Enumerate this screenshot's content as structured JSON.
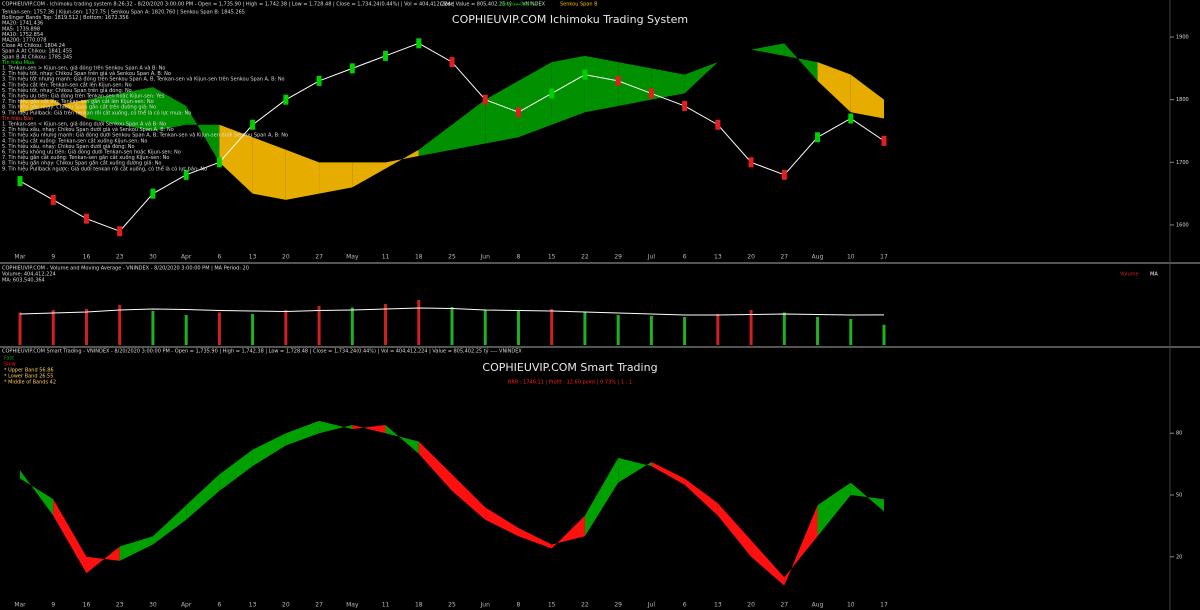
{
  "chart_data": [
    {
      "type": "ichimoku",
      "title": "COPHIEUVIP.COM Ichimoku Trading System",
      "header": "COPHIEUVIP.COM - Ichimoku trading system 8:26:32 - 8/20/2020 3:00:00 PM - Open = 1,735.90 | High = 1,742.38 | Low = 1,728.48 | Close = 1,734.24(0.44%) | Vol = 404,412,224 | Value = 805,402.25 tỷ ---- VNINDEX",
      "annotations": [
        "Tenkan-sen: 1757.36 | Kijun-sen: 1727.75 | Senkou Span A: 1820.760 | Senkou Span B: 1845.265",
        "Bollinger Bands Top: 1819.512 | Bottom: 1672.356",
        "MA20: 1741.436",
        "MA5: 1739.898",
        "MA10: 1752.854",
        "MA200: 1770.078",
        "Close At Chikou: 1804.24",
        "Span A At Chikou: 1841.455",
        "Span B At Chikou: 1785.345",
        "Tín hiệu Mua",
        "1. Tenkan-sen > Kijun-sen, giá đóng trên Senkou Span A và B: No",
        "2. Tín hiệu tốt, nhạy: Chikou Span trên giá và Senkou Span A, B: No",
        "3. Tín hiệu tốt nhưng mạnh: Giá đóng trên Senkou Span A, B, Tenkan-sen và Kijun-sen trên Senkou Span A, B: No",
        "4. Tín hiệu cắt lên: Tenkan-sen cắt lên Kijun-sen: No",
        "5. Tín hiệu tốt, nhạy: Chikou Span trên giá đóng: No",
        "6. Tín hiệu ưu tiên: Giá đóng trên Tenkan-sen hoặc Kijun-sen: Yes",
        "7. Tín hiệu gần cắt lên: Tenkan-sen gần cắt lên Kijun-sen: No",
        "8. Tín hiệu gần nhạy: Chikou Span gần cắt trên đường giá: No",
        "9. Tín hiệu Pullback: Giá trên tenkan rồi cắt xuống, có thể là có lực mua: No",
        "Tín hiệu Bán",
        "1. Tenkan-sen < Kijun-sen, giá đóng dưới Senkou Span A và B: No",
        "2. Tín hiệu xấu, nhạy: Chikou Span dưới giá và Senkou Span A, B: No",
        "3. Tín hiệu xấu nhưng mạnh: Giá đóng dưới Senkou Span A, B, Tenkan-sen và Kijun-sen dưới Senkou Span A, B: No",
        "4. Tín hiệu cắt xuống: Tenkan-sen cắt xuống Kijun-sen: No",
        "5. Tín hiệu xấu, nhạy: Chikou Span dưới giá đóng: No",
        "6. Tín hiệu không ưu tiên: Giá đóng dưới Tenkan-sen hoặc Kijun-sen: No",
        "7. Tín hiệu gần cắt xuống: Tenkan-sen gần cắt xuống Kijun-sen: No",
        "8. Tín hiệu gần nhạy: Chikou Span gần cắt xuống đường giá: No",
        "9. Tín hiệu Pullback ngược: Giá dưới tenkan rồi cắt xuống, có thể là có lực bán: No"
      ],
      "categories": [
        "Mar",
        "9",
        "16",
        "23",
        "30",
        "Apr",
        "6",
        "13",
        "20",
        "27",
        "May",
        "11",
        "18",
        "25",
        "Jun",
        "8",
        "15",
        "22",
        "29",
        "Jul",
        "6",
        "13",
        "20",
        "27",
        "Aug",
        "10",
        "17"
      ],
      "ylim": [
        1560,
        1940
      ],
      "yticks": [
        1600,
        1700,
        1800,
        1900
      ],
      "series": [
        {
          "name": "Close",
          "color": "#ffffff",
          "values": [
            1670,
            1640,
            1610,
            1590,
            1650,
            1680,
            1700,
            1760,
            1800,
            1830,
            1850,
            1870,
            1890,
            1860,
            1800,
            1780,
            1810,
            1840,
            1830,
            1810,
            1790,
            1760,
            1700,
            1680,
            1740,
            1770,
            1734.24
          ]
        },
        {
          "name": "Senkou Span A",
          "color": "#00a000",
          "values": [
            1780,
            1790,
            1800,
            1810,
            1820,
            1790,
            1700,
            1650,
            1640,
            1650,
            1660,
            1690,
            1720,
            1760,
            1800,
            1830,
            1860,
            1870,
            1860,
            1850,
            1840,
            1860,
            1880,
            1890,
            1830,
            1780,
            1770
          ]
        },
        {
          "name": "Senkou Span B",
          "color": "#ffc000",
          "values": [
            1800,
            1800,
            1770,
            1760,
            1750,
            1760,
            1760,
            1740,
            1720,
            1700,
            1700,
            1700,
            1710,
            1720,
            1730,
            1740,
            1760,
            1780,
            1790,
            1800,
            1810,
            1860,
            1880,
            1870,
            1860,
            1840,
            1800
          ]
        }
      ]
    },
    {
      "type": "volume",
      "header": "COPHIEUVIP.COM - Volume and Moving Average - VNINDEX - 8/20/2020 3:00:00 PM | MA Period: 20",
      "annotations": [
        "Volume: 404,412,224",
        "MA: 603,540,364"
      ],
      "categories": [
        "Mar",
        "9",
        "16",
        "23",
        "30",
        "Apr",
        "6",
        "13",
        "20",
        "27",
        "May",
        "11",
        "18",
        "25",
        "Jun",
        "8",
        "15",
        "22",
        "29",
        "Jul",
        "6",
        "13",
        "20",
        "27",
        "Aug",
        "10",
        "17"
      ],
      "ylim": [
        0,
        1200000000
      ],
      "series": [
        {
          "name": "Volume",
          "color": "#d02020",
          "values": [
            650000000,
            700000000,
            720000000,
            800000000,
            680000000,
            600000000,
            650000000,
            620000000,
            700000000,
            780000000,
            750000000,
            820000000,
            900000000,
            760000000,
            700000000,
            680000000,
            720000000,
            650000000,
            600000000,
            580000000,
            560000000,
            620000000,
            700000000,
            650000000,
            560000000,
            520000000,
            404412224
          ]
        },
        {
          "name": "MA",
          "color": "#ffffff",
          "values": [
            620000000,
            640000000,
            660000000,
            700000000,
            720000000,
            710000000,
            690000000,
            680000000,
            670000000,
            690000000,
            700000000,
            720000000,
            740000000,
            730000000,
            700000000,
            690000000,
            680000000,
            660000000,
            640000000,
            620000000,
            600000000,
            600000000,
            610000000,
            620000000,
            610000000,
            600000000,
            603540364
          ]
        }
      ]
    },
    {
      "type": "ribbon",
      "title": "COPHIEUVIP.COM Smart Trading",
      "subtitle": "RRR : 1746.11 | Profit : 12.60 point | 0.73% | 1 : 1",
      "header": "COPHIEUVIP.COM Smart Trading - VNINDEX - 8/20/2020 3:00:00 PM - Open = 1,735.90 | High = 1,742.38 | Low = 1,728.48 | Close = 1,734.24(0.44%) | Vol = 404,412,224 | Value = 805,402.25 tỷ ---- VNINDEX",
      "annotations": [
        "* Upper Band 56.86",
        "* Lower Band 26.55",
        "* Middle of Bands 42"
      ],
      "categories": [
        "Mar",
        "9",
        "16",
        "23",
        "30",
        "Apr",
        "6",
        "13",
        "20",
        "27",
        "May",
        "11",
        "18",
        "25",
        "Jun",
        "8",
        "15",
        "22",
        "29",
        "Jul",
        "6",
        "13",
        "20",
        "27",
        "Aug",
        "10",
        "17"
      ],
      "ylim": [
        0,
        100
      ],
      "yticks": [
        20,
        50,
        80
      ],
      "series": [
        {
          "name": "Fast",
          "color": "#00a000",
          "values": [
            62,
            40,
            12,
            25,
            30,
            45,
            60,
            72,
            80,
            86,
            82,
            84,
            70,
            52,
            38,
            30,
            24,
            40,
            68,
            64,
            55,
            40,
            20,
            6,
            45,
            56,
            42
          ]
        },
        {
          "name": "Slow",
          "color": "#ff1010",
          "values": [
            58,
            48,
            20,
            18,
            26,
            38,
            52,
            64,
            74,
            80,
            84,
            80,
            76,
            60,
            44,
            34,
            26,
            30,
            56,
            66,
            58,
            46,
            28,
            10,
            30,
            50,
            48
          ]
        }
      ]
    }
  ]
}
